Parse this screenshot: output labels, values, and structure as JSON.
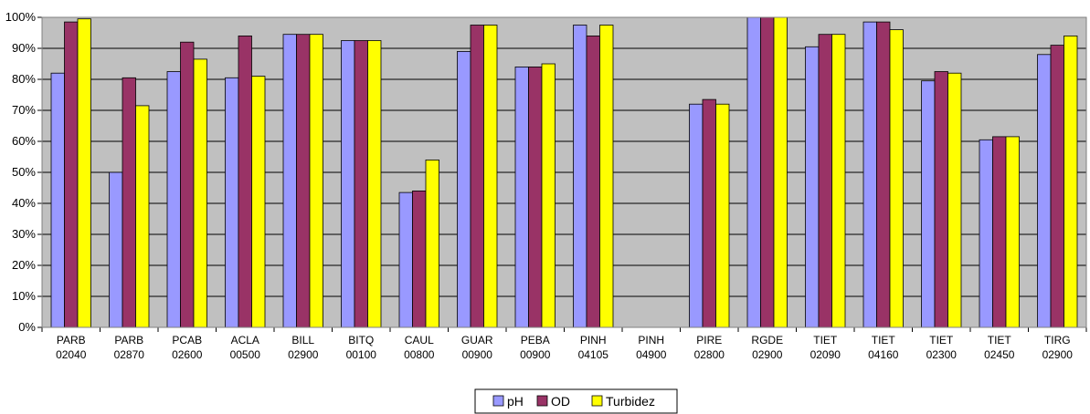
{
  "chart_data": {
    "type": "bar",
    "title": "",
    "xlabel": "",
    "ylabel": "",
    "ylim": [
      0,
      100
    ],
    "ytick_labels": [
      "0%",
      "10%",
      "20%",
      "30%",
      "40%",
      "50%",
      "60%",
      "70%",
      "80%",
      "90%",
      "100%"
    ],
    "grid": true,
    "legend_position": "bottom-center",
    "colors": {
      "plot_bg": "#c0c0c0",
      "grid": "#000000"
    },
    "categories": [
      [
        "PARB",
        "02040"
      ],
      [
        "PARB",
        "02870"
      ],
      [
        "PCAB",
        "02600"
      ],
      [
        "ACLA",
        "00500"
      ],
      [
        "BILL",
        "02900"
      ],
      [
        "BITQ",
        "00100"
      ],
      [
        "CAUL",
        "00800"
      ],
      [
        "GUAR",
        "00900"
      ],
      [
        "PEBA",
        "00900"
      ],
      [
        "PINH",
        "04105"
      ],
      [
        "PINH",
        "04900"
      ],
      [
        "PIRE",
        "02800"
      ],
      [
        "RGDE",
        "02900"
      ],
      [
        "TIET",
        "02090"
      ],
      [
        "TIET",
        "04160"
      ],
      [
        "TIET",
        "02300"
      ],
      [
        "TIET",
        "02450"
      ],
      [
        "TIRG",
        "02900"
      ]
    ],
    "series": [
      {
        "name": "pH",
        "color": "#9999ff",
        "values": [
          82,
          50,
          82.5,
          80.5,
          94.5,
          92.5,
          43.5,
          89,
          84,
          97.5,
          null,
          72,
          100,
          90.5,
          98.5,
          79.5,
          60.5,
          88
        ]
      },
      {
        "name": "OD",
        "color": "#993366",
        "values": [
          98.5,
          80.5,
          92,
          94,
          94.5,
          92.5,
          44,
          97.5,
          84,
          94,
          null,
          73.5,
          100,
          94.5,
          98.5,
          82.5,
          61.5,
          91
        ]
      },
      {
        "name": "Turbidez",
        "color": "#ffff00",
        "values": [
          99.5,
          71.5,
          86.5,
          81,
          94.5,
          92.5,
          54,
          97.5,
          85,
          97.5,
          null,
          72,
          100,
          94.5,
          96,
          82,
          61.5,
          94
        ]
      }
    ]
  }
}
